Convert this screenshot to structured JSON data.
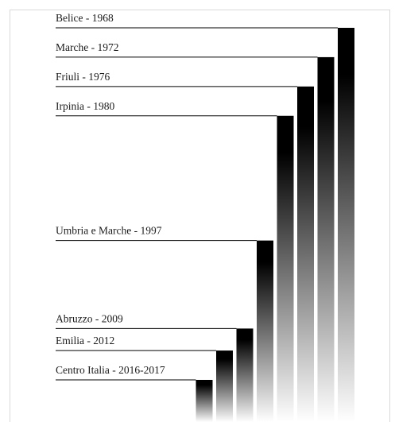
{
  "chart_data": {
    "type": "bar",
    "title": "",
    "xlabel": "",
    "ylabel": "",
    "grid": false,
    "categories": [
      "Belice - 1968",
      "Marche - 1972",
      "Friuli - 1976",
      "Irpinia - 1980",
      "Umbria e Marche - 1997",
      "Abruzzo - 2009",
      "Emilia - 2012",
      "Centro Italia - 2016-2017"
    ],
    "years": [
      1968,
      1972,
      1976,
      1980,
      1997,
      2009,
      2012,
      2016
    ],
    "colors": {
      "bar_dark": "#000000",
      "bar_light": "#ffffff",
      "line": "#000000",
      "text": "#1a1a1a"
    }
  }
}
